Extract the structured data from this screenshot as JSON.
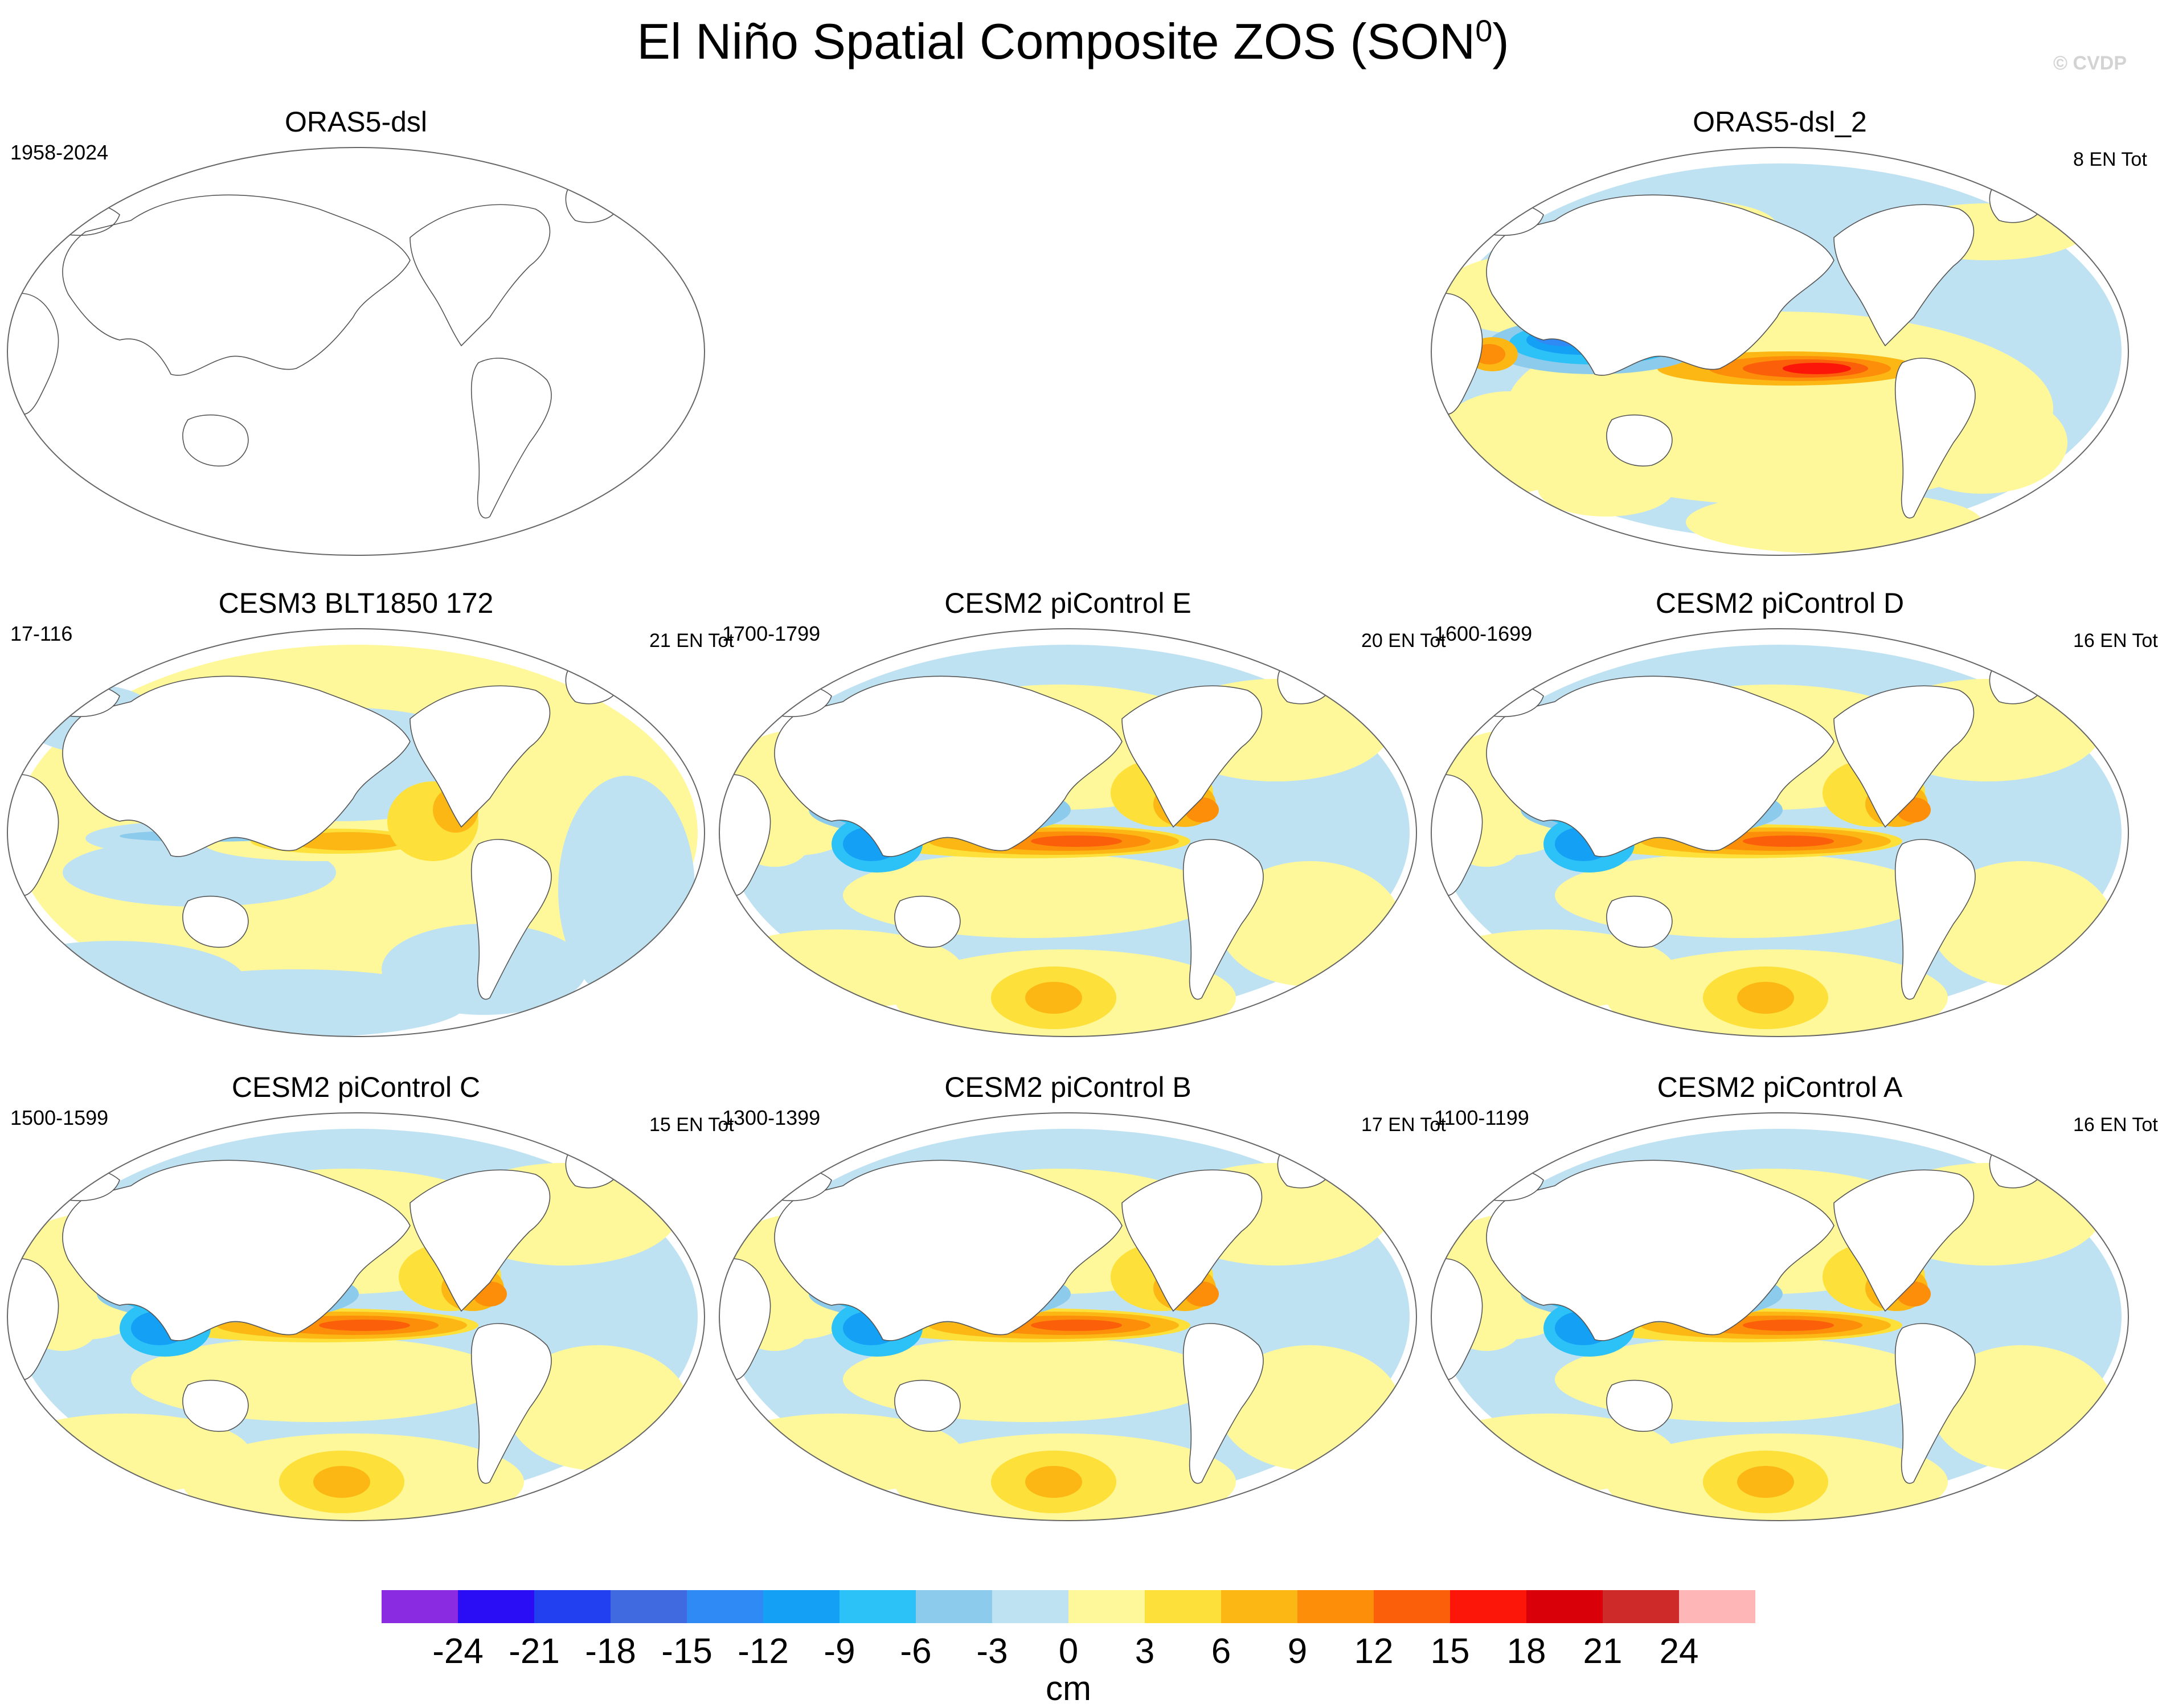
{
  "title_main": "El Niño Spatial Composite ZOS (SON",
  "title_sup": "0",
  "title_close": ")",
  "watermark": "© CVDP",
  "chart_data": {
    "type": "heatmap",
    "projection": "Robinson, Pacific-centered",
    "variable": "ZOS",
    "units": "cm",
    "colorbar": {
      "levels": [
        -24,
        -21,
        -18,
        -15,
        -12,
        -9,
        -6,
        -3,
        0,
        3,
        6,
        9,
        12,
        15,
        18,
        21,
        24
      ],
      "tick_labels": [
        "-24",
        "-21",
        "-18",
        "-15",
        "-12",
        "-9",
        "-6",
        "-3",
        "0",
        "3",
        "6",
        "9",
        "12",
        "15",
        "18",
        "21",
        "24"
      ],
      "colors": [
        "#8a2be2",
        "#2a0cf5",
        "#2340f0",
        "#3f6ae0",
        "#2f8af5",
        "#14a0f5",
        "#2cc1f7",
        "#8ccbeb",
        "#bfe2f2",
        "#fff89a",
        "#fde03a",
        "#fcb715",
        "#fc8e0a",
        "#fc5f0a",
        "#fc160a",
        "#d9000a",
        "#cf2a2a",
        "#ffb6b6"
      ],
      "unit_label": "cm"
    },
    "panels": [
      {
        "title": "ORAS5-dsl",
        "period": "1958-2024",
        "count": "",
        "pattern": "empty"
      },
      {
        "title": "ORAS5-dsl_2",
        "period": "",
        "count": "8 EN Tot",
        "pattern": "obs"
      },
      {
        "title": "CESM3 BLT1850 172",
        "period": "17-116",
        "count": "21 EN Tot",
        "pattern": "weak"
      },
      {
        "title": "CESM2 piControl E",
        "period": "1700-1799",
        "count": "20 EN Tot",
        "pattern": "model"
      },
      {
        "title": "CESM2 piControl D",
        "period": "1600-1699",
        "count": "16 EN Tot",
        "pattern": "model"
      },
      {
        "title": "CESM2 piControl C",
        "period": "1500-1599",
        "count": "15 EN Tot",
        "pattern": "model"
      },
      {
        "title": "CESM2 piControl B",
        "period": "1300-1399",
        "count": "17 EN Tot",
        "pattern": "model"
      },
      {
        "title": "CESM2 piControl A",
        "period": "1100-1199",
        "count": "16 EN Tot",
        "pattern": "model"
      }
    ]
  }
}
